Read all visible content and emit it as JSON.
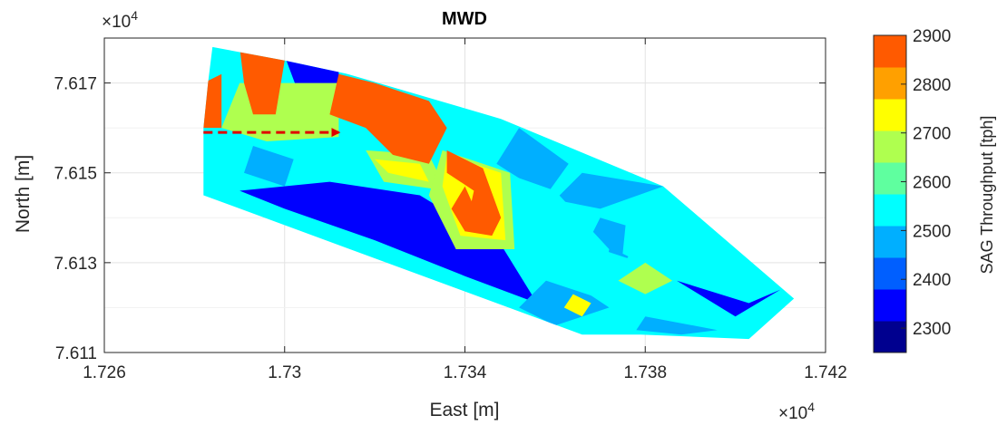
{
  "chart_data": {
    "type": "heatmap",
    "title": "MWD",
    "xlabel": "East [m]",
    "ylabel": "North [m]",
    "x_multiplier": "×10",
    "x_exponent": "4",
    "y_multiplier": "×10",
    "y_exponent": "4",
    "xlim": [
      1.726,
      1.742
    ],
    "ylim": [
      7.611,
      7.618
    ],
    "xticks": [
      "1.726",
      "1.73",
      "1.734",
      "1.738",
      "1.742"
    ],
    "yticks": [
      "7.611",
      "7.613",
      "7.615",
      "7.617"
    ],
    "xtick_values": [
      1.726,
      1.73,
      1.734,
      1.738,
      1.742
    ],
    "ytick_values": [
      7.611,
      7.613,
      7.615,
      7.617
    ],
    "grid": true,
    "colorbar": {
      "label": "SAG Throughput [tph]",
      "ticks": [
        "2300",
        "2400",
        "2500",
        "2600",
        "2700",
        "2800",
        "2900"
      ],
      "tick_values": [
        2300,
        2400,
        2500,
        2600,
        2700,
        2800,
        2900
      ],
      "min": 2250,
      "max": 2900,
      "colors": [
        "#00008f",
        "#0000ff",
        "#005fff",
        "#00afff",
        "#00ffff",
        "#5fff9f",
        "#afff4f",
        "#ffff00",
        "#ffa000",
        "#ff5a00"
      ]
    },
    "mine_outline": [
      [
        1.7284,
        7.6178
      ],
      [
        1.73,
        7.6175
      ],
      [
        1.7314,
        7.6172
      ],
      [
        1.7348,
        7.6162
      ],
      [
        1.7384,
        7.6147
      ],
      [
        1.7413,
        7.6122
      ],
      [
        1.7403,
        7.6113
      ],
      [
        1.7379,
        7.6114
      ],
      [
        1.7366,
        7.6114
      ],
      [
        1.7282,
        7.6145
      ],
      [
        1.7282,
        7.616
      ],
      [
        1.7283,
        7.617
      ],
      [
        1.7284,
        7.6178
      ]
    ],
    "regions": [
      {
        "value": 2350,
        "polygon": [
          [
            1.733,
            7.6145
          ],
          [
            1.7348,
            7.6134
          ],
          [
            1.7356,
            7.6121
          ],
          [
            1.734,
            7.6127
          ],
          [
            1.732,
            7.6135
          ],
          [
            1.73,
            7.6142
          ],
          [
            1.729,
            7.6146
          ],
          [
            1.731,
            7.6148
          ]
        ]
      },
      {
        "value": 2350,
        "polygon": [
          [
            1.73,
            7.6176
          ],
          [
            1.7312,
            7.6175
          ],
          [
            1.7312,
            7.6166
          ],
          [
            1.7303,
            7.6168
          ]
        ]
      },
      {
        "value": 2350,
        "polygon": [
          [
            1.7387,
            7.6126
          ],
          [
            1.7403,
            7.6121
          ],
          [
            1.741,
            7.6124
          ],
          [
            1.74,
            7.6118
          ]
        ]
      },
      {
        "value": 2450,
        "polygon": [
          [
            1.7352,
            7.616
          ],
          [
            1.7363,
            7.6152
          ],
          [
            1.7358,
            7.6145
          ],
          [
            1.7347,
            7.6152
          ]
        ]
      },
      {
        "value": 2450,
        "polygon": [
          [
            1.7366,
            7.615
          ],
          [
            1.7384,
            7.6147
          ],
          [
            1.737,
            7.6142
          ],
          [
            1.736,
            7.6144
          ]
        ]
      },
      {
        "value": 2450,
        "polygon": [
          [
            1.736,
            7.6128
          ],
          [
            1.7372,
            7.612
          ],
          [
            1.736,
            7.6116
          ],
          [
            1.7352,
            7.612
          ]
        ]
      },
      {
        "value": 2450,
        "polygon": [
          [
            1.737,
            7.614
          ],
          [
            1.738,
            7.6137
          ],
          [
            1.7376,
            7.6131
          ],
          [
            1.7367,
            7.6134
          ]
        ]
      },
      {
        "value": 2450,
        "polygon": [
          [
            1.7293,
            7.6156
          ],
          [
            1.7302,
            7.6153
          ],
          [
            1.73,
            7.6147
          ],
          [
            1.7291,
            7.615
          ]
        ]
      },
      {
        "value": 2450,
        "polygon": [
          [
            1.738,
            7.6118
          ],
          [
            1.7396,
            7.6115
          ],
          [
            1.7388,
            7.6114
          ],
          [
            1.7378,
            7.6115
          ]
        ]
      },
      {
        "value": 2550,
        "polygon": [
          [
            1.7343,
            7.6152
          ],
          [
            1.736,
            7.6146
          ],
          [
            1.7372,
            7.6133
          ],
          [
            1.737,
            7.6122
          ],
          [
            1.7352,
            7.6128
          ]
        ]
      },
      {
        "value": 2550,
        "polygon": [
          [
            1.7376,
            7.6142
          ],
          [
            1.7388,
            7.614
          ],
          [
            1.7394,
            7.613
          ],
          [
            1.7383,
            7.6128
          ],
          [
            1.7375,
            7.6132
          ]
        ]
      },
      {
        "value": 2650,
        "polygon": [
          [
            1.729,
            7.617
          ],
          [
            1.7312,
            7.617
          ],
          [
            1.7312,
            7.6158
          ],
          [
            1.7296,
            7.6157
          ],
          [
            1.7286,
            7.616
          ]
        ]
      },
      {
        "value": 2650,
        "polygon": [
          [
            1.7318,
            7.6155
          ],
          [
            1.7332,
            7.6154
          ],
          [
            1.7336,
            7.6146
          ],
          [
            1.7322,
            7.6148
          ]
        ]
      },
      {
        "value": 2650,
        "polygon": [
          [
            1.7335,
            7.6155
          ],
          [
            1.735,
            7.615
          ],
          [
            1.7351,
            7.6133
          ],
          [
            1.7338,
            7.6133
          ],
          [
            1.7332,
            7.6145
          ]
        ]
      },
      {
        "value": 2700,
        "polygon": [
          [
            1.738,
            7.613
          ],
          [
            1.7386,
            7.6126
          ],
          [
            1.738,
            7.6123
          ],
          [
            1.7374,
            7.6126
          ]
        ]
      },
      {
        "value": 2750,
        "polygon": [
          [
            1.732,
            7.6153
          ],
          [
            1.733,
            7.6152
          ],
          [
            1.7332,
            7.6148
          ],
          [
            1.7323,
            7.615
          ]
        ]
      },
      {
        "value": 2750,
        "polygon": [
          [
            1.7364,
            7.6123
          ],
          [
            1.7368,
            7.6121
          ],
          [
            1.7366,
            7.6118
          ],
          [
            1.7362,
            7.612
          ]
        ]
      },
      {
        "value": 2750,
        "polygon": [
          [
            1.7336,
            7.6154
          ],
          [
            1.7348,
            7.615
          ],
          [
            1.7349,
            7.6135
          ],
          [
            1.7339,
            7.6136
          ],
          [
            1.7335,
            7.6147
          ]
        ]
      },
      {
        "value": 2850,
        "polygon": [
          [
            1.734,
            7.6147
          ],
          [
            1.7344,
            7.6138
          ],
          [
            1.734,
            7.6137
          ],
          [
            1.7337,
            7.6142
          ]
        ]
      },
      {
        "value": 2900,
        "polygon": [
          [
            1.729,
            7.6178
          ],
          [
            1.73,
            7.6175
          ],
          [
            1.7298,
            7.6163
          ],
          [
            1.7293,
            7.6163
          ],
          [
            1.7291,
            7.617
          ]
        ]
      },
      {
        "value": 2900,
        "polygon": [
          [
            1.7282,
            7.617
          ],
          [
            1.7286,
            7.6172
          ],
          [
            1.7286,
            7.616
          ],
          [
            1.7282,
            7.616
          ]
        ]
      },
      {
        "value": 2900,
        "polygon": [
          [
            1.7312,
            7.6172
          ],
          [
            1.732,
            7.617
          ],
          [
            1.7332,
            7.6166
          ],
          [
            1.7336,
            7.616
          ],
          [
            1.7332,
            7.6152
          ],
          [
            1.7324,
            7.6154
          ],
          [
            1.7318,
            7.616
          ],
          [
            1.731,
            7.6163
          ]
        ]
      },
      {
        "value": 2900,
        "polygon": [
          [
            1.7336,
            7.6155
          ],
          [
            1.7344,
            7.6151
          ],
          [
            1.7348,
            7.614
          ],
          [
            1.7346,
            7.6136
          ],
          [
            1.734,
            7.6137
          ],
          [
            1.7342,
            7.6146
          ],
          [
            1.7336,
            7.615
          ]
        ]
      }
    ],
    "annotations": [
      {
        "type": "dashed-arrow",
        "color": "#e00000",
        "from": [
          1.7282,
          7.6159
        ],
        "to": [
          1.7312,
          7.6159
        ]
      }
    ]
  }
}
